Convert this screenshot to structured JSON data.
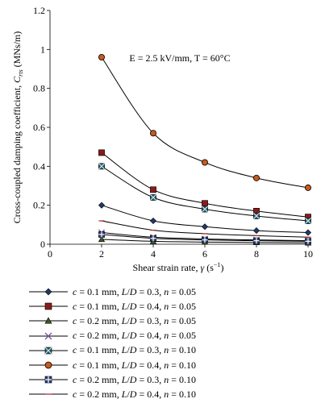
{
  "chart_data": {
    "type": "line",
    "xlabel_main": "Shear strain rate, ",
    "xlabel_symbol": "γ",
    "xlabel_unit": " (s",
    "xlabel_exp": "−1",
    "xlabel_close": ")",
    "ylabel_main": "Cross-coupled damping coefficient, ",
    "ylabel_symbol": "C",
    "ylabel_sub": "rts",
    "ylabel_unit": " (MNs/m)",
    "annotation": "E = 2.5 kV/mm, T = 60°C",
    "xlim": [
      0,
      10
    ],
    "ylim": [
      0,
      1.2
    ],
    "xticks": [
      "0",
      "2",
      "4",
      "6",
      "8",
      "10"
    ],
    "yticks": [
      "0",
      "0.2",
      "0.4",
      "0.6",
      "0.8",
      "1",
      "1.2"
    ],
    "x": [
      2,
      4,
      6,
      8,
      10
    ],
    "series": [
      {
        "name": "c = 0.1 mm, L/D = 0.3, n = 0.05",
        "marker": "diamond",
        "values": [
          0.2,
          0.12,
          0.09,
          0.07,
          0.06
        ]
      },
      {
        "name": "c = 0.1 mm, L/D = 0.4, n = 0.05",
        "marker": "square",
        "values": [
          0.47,
          0.28,
          0.21,
          0.17,
          0.14
        ]
      },
      {
        "name": "c = 0.2 mm, L/D = 0.3, n = 0.05",
        "marker": "triangle",
        "values": [
          0.025,
          0.015,
          0.011,
          0.009,
          0.007
        ]
      },
      {
        "name": "c = 0.2 mm, L/D = 0.4, n = 0.05",
        "marker": "x",
        "values": [
          0.06,
          0.036,
          0.027,
          0.022,
          0.018
        ]
      },
      {
        "name": "c = 0.1 mm, L/D = 0.3, n = 0.10",
        "marker": "boxx",
        "values": [
          0.4,
          0.24,
          0.18,
          0.145,
          0.12
        ]
      },
      {
        "name": "c = 0.1 mm, L/D = 0.4, n = 0.10",
        "marker": "circle",
        "values": [
          0.96,
          0.57,
          0.42,
          0.34,
          0.29
        ]
      },
      {
        "name": "c = 0.2 mm, L/D = 0.3, n = 0.10",
        "marker": "boxplus",
        "values": [
          0.05,
          0.03,
          0.022,
          0.018,
          0.015
        ]
      },
      {
        "name": "c = 0.2 mm, L/D = 0.4, n = 0.10",
        "marker": "dash",
        "values": [
          0.12,
          0.072,
          0.054,
          0.044,
          0.036
        ]
      }
    ],
    "colors": {
      "diamond": "#1f3a6b",
      "square": "#8b1a1a",
      "triangle": "#3d5a1f",
      "x": "#7a5a9c",
      "boxx": "#1f5a6b",
      "circle": "#c85a1a",
      "boxplus": "#2a3f7a",
      "dash": "#b02020",
      "line": "#000000"
    }
  }
}
